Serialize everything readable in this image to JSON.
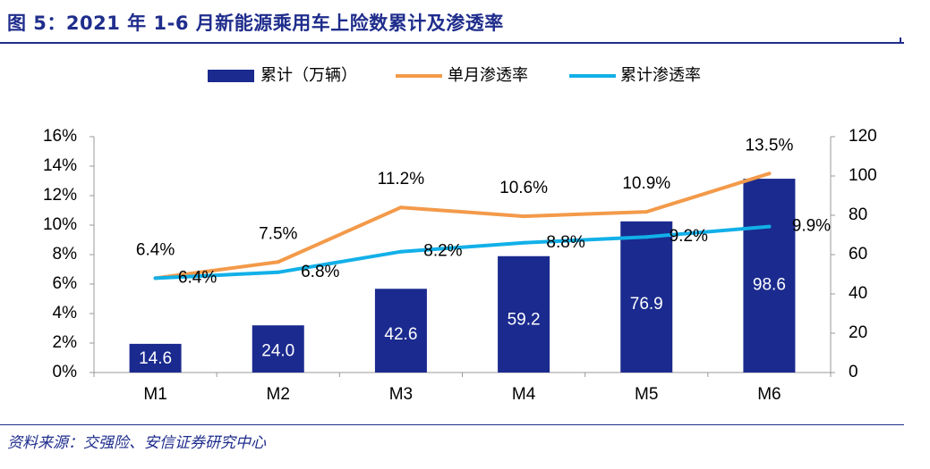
{
  "figure": {
    "title": "图 5：2021 年 1-6 月新能源乘用车上险数累计及渗透率",
    "source": "资料来源：交强险、安信证券研究中心"
  },
  "colors": {
    "title": "#1f2d8c",
    "bar": "#1b2a8e",
    "monthly_line": "#f39a4a",
    "cumulative_line": "#12b0e8",
    "axis": "#999999"
  },
  "chart_data": {
    "type": "bar",
    "categories": [
      "M1",
      "M2",
      "M3",
      "M4",
      "M5",
      "M6"
    ],
    "series": [
      {
        "name": "累计（万辆）",
        "type": "bar",
        "axis": "right",
        "values": [
          14.6,
          24.0,
          42.6,
          59.2,
          76.9,
          98.6
        ],
        "labels": [
          "14.6",
          "24.0",
          "42.6",
          "59.2",
          "76.9",
          "98.6"
        ]
      },
      {
        "name": "单月渗透率",
        "type": "line",
        "axis": "left",
        "values": [
          6.4,
          7.5,
          11.2,
          10.6,
          10.9,
          13.5
        ],
        "labels": [
          "6.4%",
          "7.5%",
          "11.2%",
          "10.6%",
          "10.9%",
          "13.5%"
        ]
      },
      {
        "name": "累计渗透率",
        "type": "line",
        "axis": "left",
        "values": [
          6.4,
          6.8,
          8.2,
          8.8,
          9.2,
          9.9
        ],
        "labels": [
          "6.4%",
          "6.8%",
          "8.2%",
          "8.8%",
          "9.2%",
          "9.9%"
        ]
      }
    ],
    "y_left": {
      "ylim": [
        0,
        16
      ],
      "ticks": [
        "0%",
        "2%",
        "4%",
        "6%",
        "8%",
        "10%",
        "12%",
        "14%",
        "16%"
      ]
    },
    "y_right": {
      "ylim": [
        0,
        120
      ],
      "ticks": [
        "0",
        "20",
        "40",
        "60",
        "80",
        "100",
        "120"
      ]
    },
    "legend_position": "top-center",
    "grid": false
  }
}
